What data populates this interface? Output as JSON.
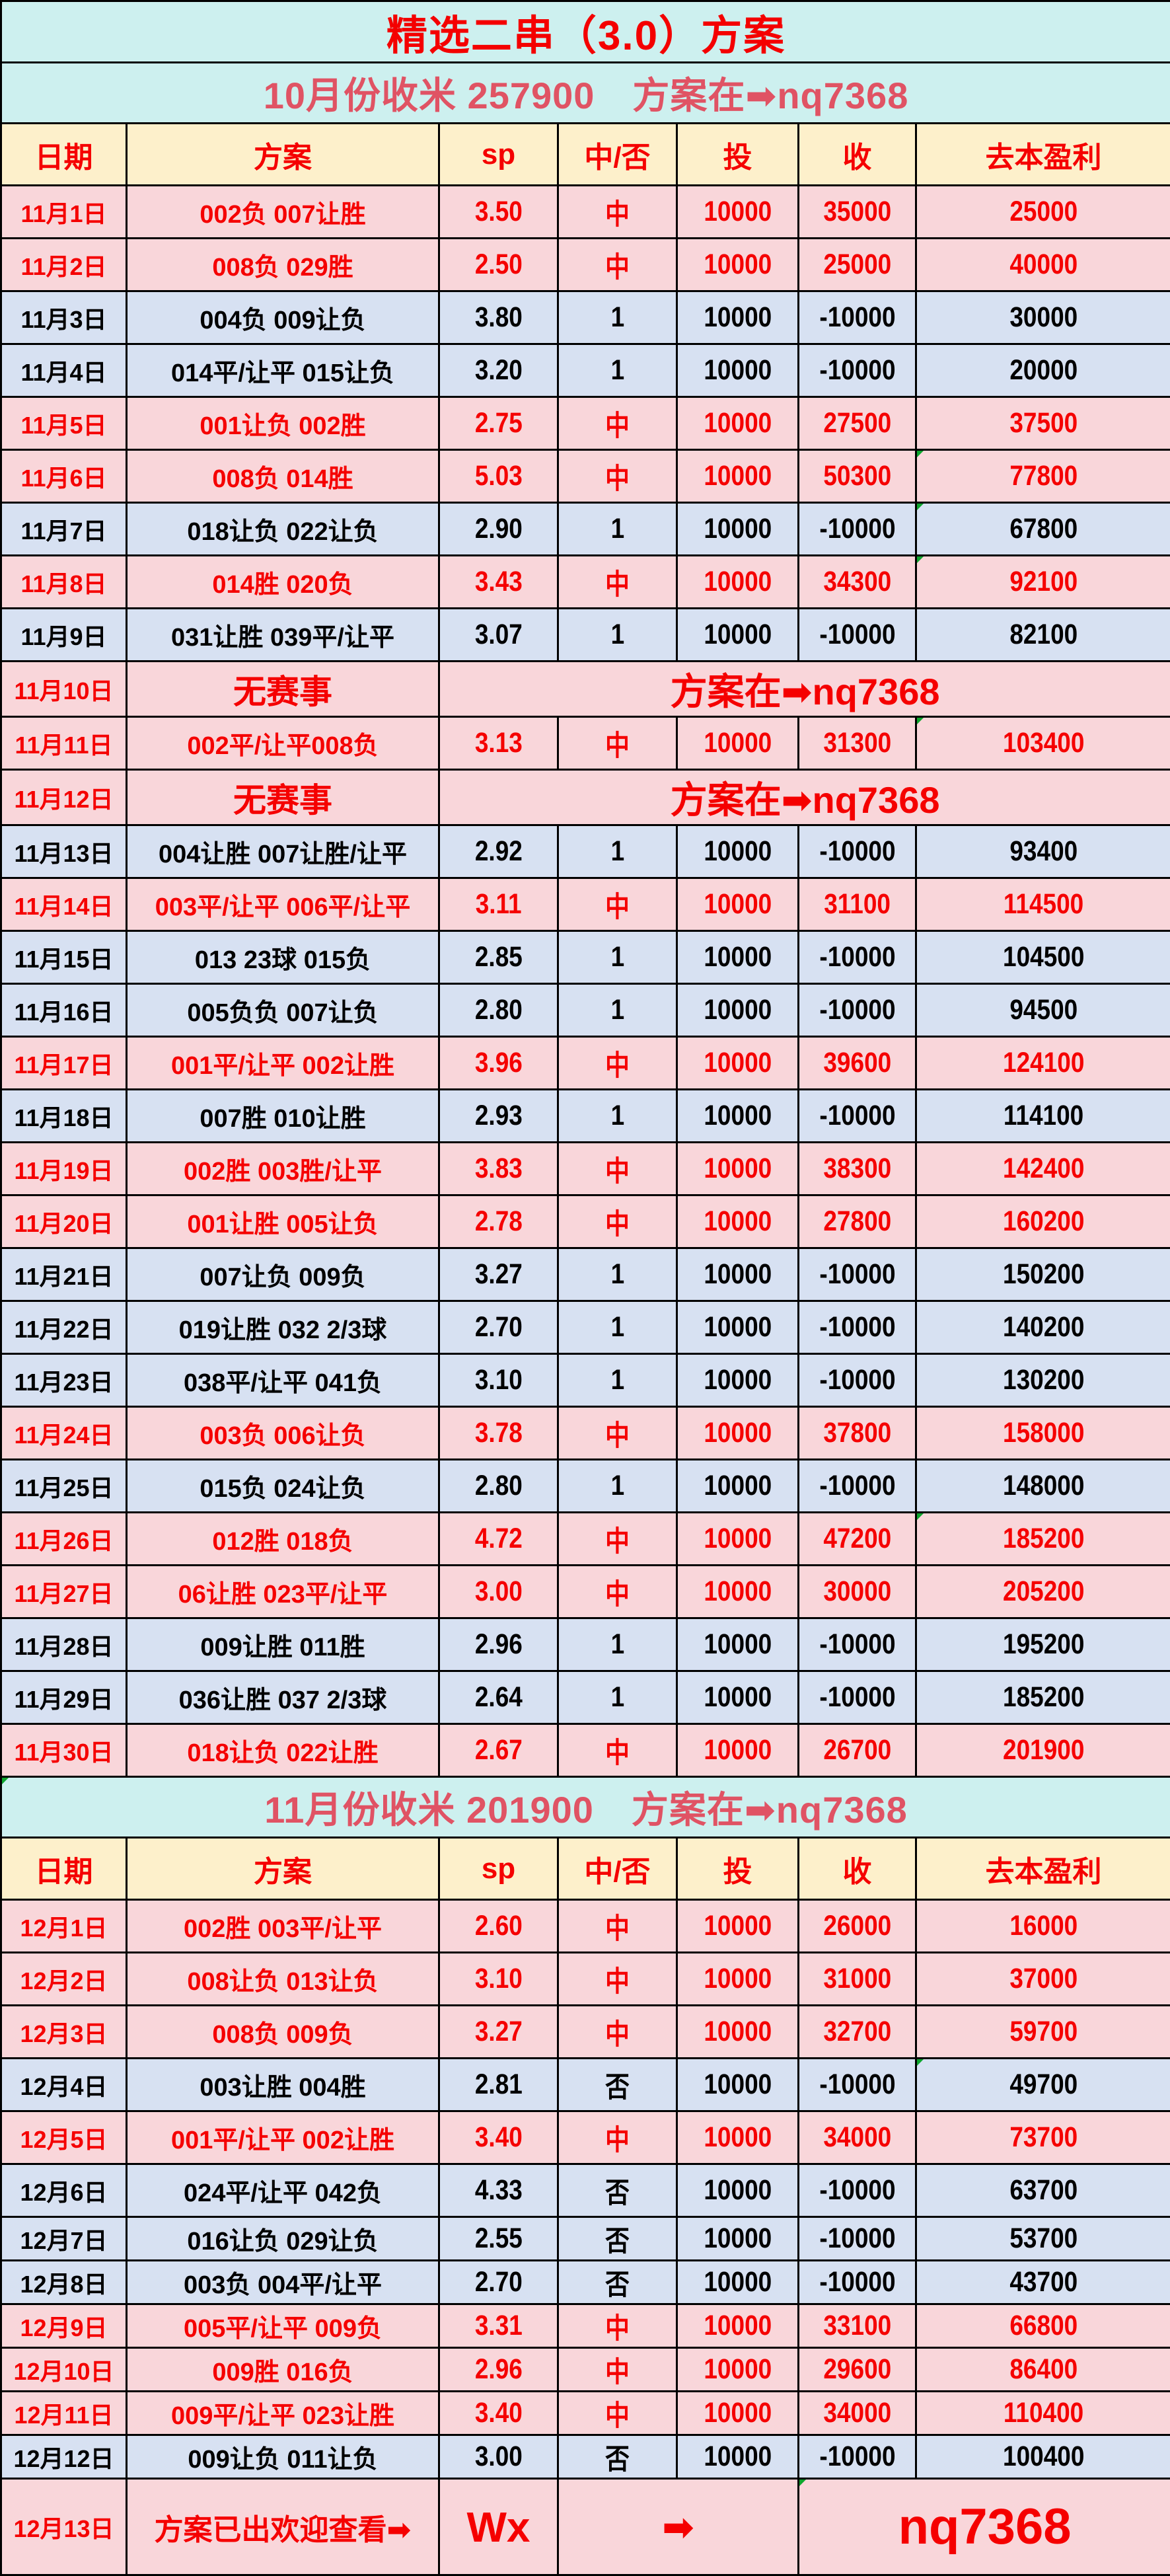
{
  "title": "精选二串（3.0）方案",
  "summary_october": "10月份收米 257900　方案在➡nq7368",
  "summary_november": "11月份收米 201900　方案在➡nq7368",
  "columns": [
    "日期",
    "方案",
    "sp",
    "中/否",
    "投",
    "收",
    "去本盈利"
  ],
  "november_rows": [
    {
      "date": "11月1日",
      "plan": "002负 007让胜",
      "sp": "3.50",
      "result": "中",
      "stake": "10000",
      "ret": "35000",
      "profit": "25000",
      "status": "win"
    },
    {
      "date": "11月2日",
      "plan": "008负 029胜",
      "sp": "2.50",
      "result": "中",
      "stake": "10000",
      "ret": "25000",
      "profit": "40000",
      "status": "win"
    },
    {
      "date": "11月3日",
      "plan": "004负 009让负",
      "sp": "3.80",
      "result": "1",
      "stake": "10000",
      "ret": "-10000",
      "profit": "30000",
      "status": "loss"
    },
    {
      "date": "11月4日",
      "plan": "014平/让平 015让负",
      "sp": "3.20",
      "result": "1",
      "stake": "10000",
      "ret": "-10000",
      "profit": "20000",
      "status": "loss"
    },
    {
      "date": "11月5日",
      "plan": "001让负 002胜",
      "sp": "2.75",
      "result": "中",
      "stake": "10000",
      "ret": "27500",
      "profit": "37500",
      "status": "win"
    },
    {
      "date": "11月6日",
      "plan": "008负 014胜",
      "sp": "5.03",
      "result": "中",
      "stake": "10000",
      "ret": "50300",
      "profit": "77800",
      "status": "win",
      "flag": true
    },
    {
      "date": "11月7日",
      "plan": "018让负 022让负",
      "sp": "2.90",
      "result": "1",
      "stake": "10000",
      "ret": "-10000",
      "profit": "67800",
      "status": "loss",
      "flag": true
    },
    {
      "date": "11月8日",
      "plan": "014胜 020负",
      "sp": "3.43",
      "result": "中",
      "stake": "10000",
      "ret": "34300",
      "profit": "92100",
      "status": "win",
      "flag": true
    },
    {
      "date": "11月9日",
      "plan": "031让胜 039平/让平",
      "sp": "3.07",
      "result": "1",
      "stake": "10000",
      "ret": "-10000",
      "profit": "82100",
      "status": "loss"
    },
    {
      "date": "11月10日",
      "plan": "无赛事",
      "note": "方案在➡nq7368",
      "status": "norace"
    },
    {
      "date": "11月11日",
      "plan": "002平/让平008负",
      "sp": "3.13",
      "result": "中",
      "stake": "10000",
      "ret": "31300",
      "profit": "103400",
      "status": "win",
      "flag": true
    },
    {
      "date": "11月12日",
      "plan": "无赛事",
      "note": "方案在➡nq7368",
      "status": "norace"
    },
    {
      "date": "11月13日",
      "plan": "004让胜 007让胜/让平",
      "sp": "2.92",
      "result": "1",
      "stake": "10000",
      "ret": "-10000",
      "profit": "93400",
      "status": "loss"
    },
    {
      "date": "11月14日",
      "plan": "003平/让平 006平/让平",
      "sp": "3.11",
      "result": "中",
      "stake": "10000",
      "ret": "31100",
      "profit": "114500",
      "status": "win"
    },
    {
      "date": "11月15日",
      "plan": "013 23球 015负",
      "sp": "2.85",
      "result": "1",
      "stake": "10000",
      "ret": "-10000",
      "profit": "104500",
      "status": "loss"
    },
    {
      "date": "11月16日",
      "plan": "005负负 007让负",
      "sp": "2.80",
      "result": "1",
      "stake": "10000",
      "ret": "-10000",
      "profit": "94500",
      "status": "loss"
    },
    {
      "date": "11月17日",
      "plan": "001平/让平 002让胜",
      "sp": "3.96",
      "result": "中",
      "stake": "10000",
      "ret": "39600",
      "profit": "124100",
      "status": "win"
    },
    {
      "date": "11月18日",
      "plan": "007胜 010让胜",
      "sp": "2.93",
      "result": "1",
      "stake": "10000",
      "ret": "-10000",
      "profit": "114100",
      "status": "loss"
    },
    {
      "date": "11月19日",
      "plan": "002胜 003胜/让平",
      "sp": "3.83",
      "result": "中",
      "stake": "10000",
      "ret": "38300",
      "profit": "142400",
      "status": "win"
    },
    {
      "date": "11月20日",
      "plan": "001让胜 005让负",
      "sp": "2.78",
      "result": "中",
      "stake": "10000",
      "ret": "27800",
      "profit": "160200",
      "status": "win"
    },
    {
      "date": "11月21日",
      "plan": "007让负 009负",
      "sp": "3.27",
      "result": "1",
      "stake": "10000",
      "ret": "-10000",
      "profit": "150200",
      "status": "loss"
    },
    {
      "date": "11月22日",
      "plan": "019让胜 032 2/3球",
      "sp": "2.70",
      "result": "1",
      "stake": "10000",
      "ret": "-10000",
      "profit": "140200",
      "status": "loss"
    },
    {
      "date": "11月23日",
      "plan": "038平/让平 041负",
      "sp": "3.10",
      "result": "1",
      "stake": "10000",
      "ret": "-10000",
      "profit": "130200",
      "status": "loss"
    },
    {
      "date": "11月24日",
      "plan": "003负 006让负",
      "sp": "3.78",
      "result": "中",
      "stake": "10000",
      "ret": "37800",
      "profit": "158000",
      "status": "win"
    },
    {
      "date": "11月25日",
      "plan": "015负 024让负",
      "sp": "2.80",
      "result": "1",
      "stake": "10000",
      "ret": "-10000",
      "profit": "148000",
      "status": "loss"
    },
    {
      "date": "11月26日",
      "plan": "012胜 018负",
      "sp": "4.72",
      "result": "中",
      "stake": "10000",
      "ret": "47200",
      "profit": "185200",
      "status": "win",
      "flag": true
    },
    {
      "date": "11月27日",
      "plan": "06让胜 023平/让平",
      "sp": "3.00",
      "result": "中",
      "stake": "10000",
      "ret": "30000",
      "profit": "205200",
      "status": "win"
    },
    {
      "date": "11月28日",
      "plan": "009让胜 011胜",
      "sp": "2.96",
      "result": "1",
      "stake": "10000",
      "ret": "-10000",
      "profit": "195200",
      "status": "loss"
    },
    {
      "date": "11月29日",
      "plan": "036让胜 037 2/3球",
      "sp": "2.64",
      "result": "1",
      "stake": "10000",
      "ret": "-10000",
      "profit": "185200",
      "status": "loss"
    },
    {
      "date": "11月30日",
      "plan": "018让负 022让胜",
      "sp": "2.67",
      "result": "中",
      "stake": "10000",
      "ret": "26700",
      "profit": "201900",
      "status": "win"
    }
  ],
  "december_rows": [
    {
      "date": "12月1日",
      "plan": "002胜 003平/让平",
      "sp": "2.60",
      "result": "中",
      "stake": "10000",
      "ret": "26000",
      "profit": "16000",
      "status": "win"
    },
    {
      "date": "12月2日",
      "plan": "008让负 013让负",
      "sp": "3.10",
      "result": "中",
      "stake": "10000",
      "ret": "31000",
      "profit": "37000",
      "status": "win"
    },
    {
      "date": "12月3日",
      "plan": "008负 009负",
      "sp": "3.27",
      "result": "中",
      "stake": "10000",
      "ret": "32700",
      "profit": "59700",
      "status": "win"
    },
    {
      "date": "12月4日",
      "plan": "003让胜 004胜",
      "sp": "2.81",
      "result": "否",
      "stake": "10000",
      "ret": "-10000",
      "profit": "49700",
      "status": "loss",
      "flag": true
    },
    {
      "date": "12月5日",
      "plan": "001平/让平 002让胜",
      "sp": "3.40",
      "result": "中",
      "stake": "10000",
      "ret": "34000",
      "profit": "73700",
      "status": "win"
    },
    {
      "date": "12月6日",
      "plan": "024平/让平 042负",
      "sp": "4.33",
      "result": "否",
      "stake": "10000",
      "ret": "-10000",
      "profit": "63700",
      "status": "loss"
    },
    {
      "date": "12月7日",
      "plan": "016让负 029让负",
      "sp": "2.55",
      "result": "否",
      "stake": "10000",
      "ret": "-10000",
      "profit": "53700",
      "status": "loss"
    },
    {
      "date": "12月8日",
      "plan": "003负 004平/让平",
      "sp": "2.70",
      "result": "否",
      "stake": "10000",
      "ret": "-10000",
      "profit": "43700",
      "status": "loss"
    },
    {
      "date": "12月9日",
      "plan": "005平/让平 009负",
      "sp": "3.31",
      "result": "中",
      "stake": "10000",
      "ret": "33100",
      "profit": "66800",
      "status": "win"
    },
    {
      "date": "12月10日",
      "plan": "009胜 016负",
      "sp": "2.96",
      "result": "中",
      "stake": "10000",
      "ret": "29600",
      "profit": "86400",
      "status": "win"
    },
    {
      "date": "12月11日",
      "plan": "009平/让平 023让胜",
      "sp": "3.40",
      "result": "中",
      "stake": "10000",
      "ret": "34000",
      "profit": "110400",
      "status": "win"
    },
    {
      "date": "12月12日",
      "plan": "009让负 011让负",
      "sp": "3.00",
      "result": "否",
      "stake": "10000",
      "ret": "-10000",
      "profit": "100400",
      "status": "loss"
    }
  ],
  "final_row": {
    "date": "12月13日",
    "plan": "方案已出欢迎查看➡",
    "wx": "Wx",
    "arrow": "➡",
    "handle": "nq7368"
  },
  "colors": {
    "title_red": "#F40000",
    "data_red": "#F50000",
    "band_text_rose": "#E05364",
    "win_row_pink": "#F9D6DA",
    "loss_row_blue": "#D7E1F2",
    "band_cyan": "#CDF0EF",
    "header_cream": "#FDF0CB",
    "border_black": "#000000",
    "flag_green": "#0EA52E"
  }
}
